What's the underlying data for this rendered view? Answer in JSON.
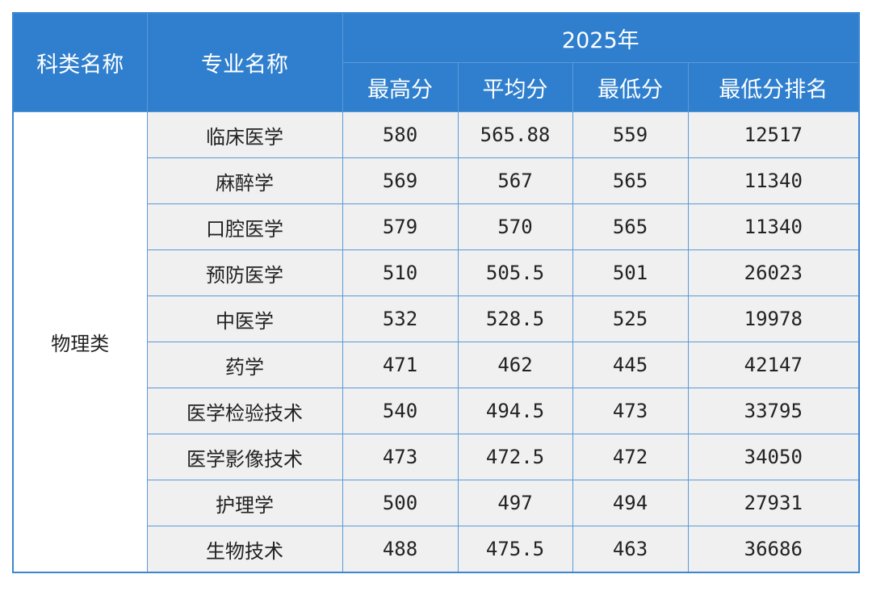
{
  "header": {
    "category": "科类名称",
    "major": "专业名称",
    "year": "2025年",
    "columns": [
      "最高分",
      "平均分",
      "最低分",
      "最低分排名"
    ]
  },
  "table": {
    "category": "物理类",
    "rows": [
      [
        "临床医学",
        580,
        565.88,
        559,
        12517
      ],
      [
        "麻醉学",
        569,
        567,
        565,
        11340
      ],
      [
        "口腔医学",
        579,
        570,
        565,
        11340
      ],
      [
        "预防医学",
        510,
        505.5,
        501,
        26023
      ],
      [
        "中医学",
        532,
        528.5,
        525,
        19978
      ],
      [
        "药学",
        471,
        462,
        445,
        42147
      ],
      [
        "医学检验技术",
        540,
        494.5,
        473,
        33795
      ],
      [
        "医学影像技术",
        473,
        472.5,
        472,
        34050
      ],
      [
        "护理学",
        500,
        497,
        494,
        27931
      ],
      [
        "生物技术",
        488,
        475.5,
        463,
        36686
      ]
    ]
  }
}
